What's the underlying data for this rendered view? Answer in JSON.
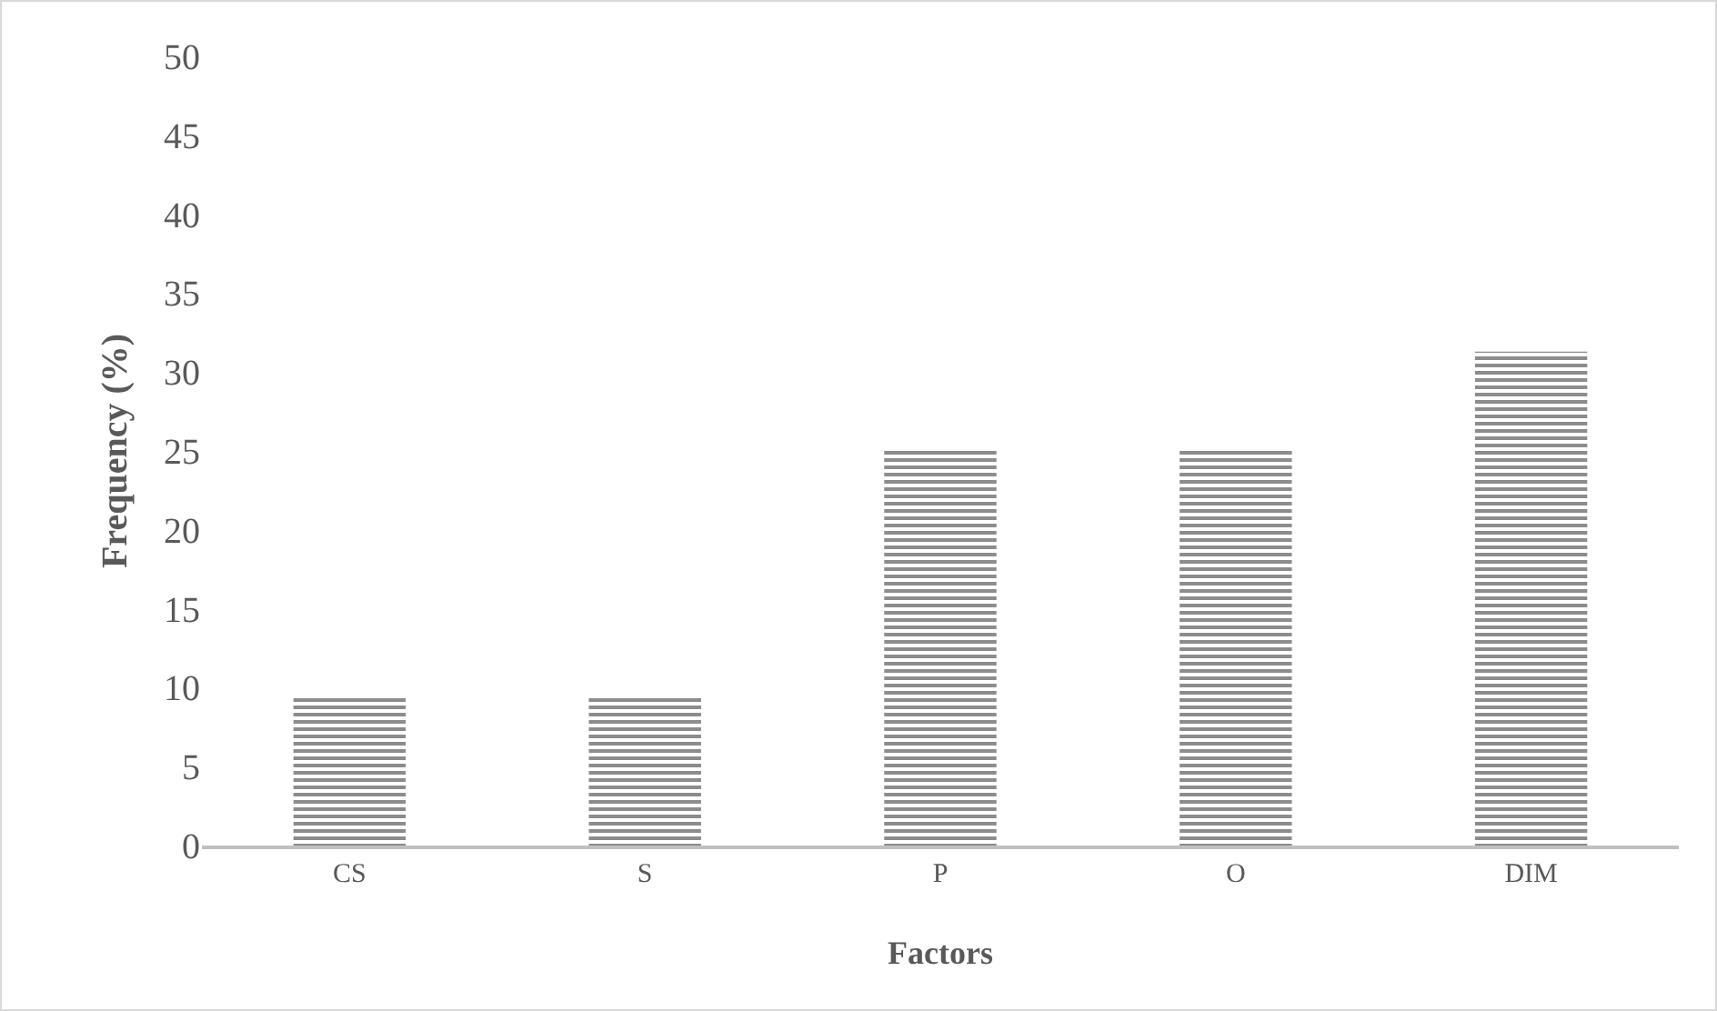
{
  "chart_data": {
    "type": "bar",
    "xlabel": "Factors",
    "ylabel": "Frequency (%)",
    "categories": [
      "CS",
      "S",
      "P",
      "O",
      "DIM"
    ],
    "values": [
      9.4,
      9.4,
      25,
      25,
      31.3
    ],
    "color": "#8c8c8c",
    "ylim": [
      0,
      50
    ],
    "yticks": [
      0,
      5,
      10,
      15,
      20,
      25,
      30,
      35,
      40,
      45,
      50
    ],
    "grid": false
  }
}
